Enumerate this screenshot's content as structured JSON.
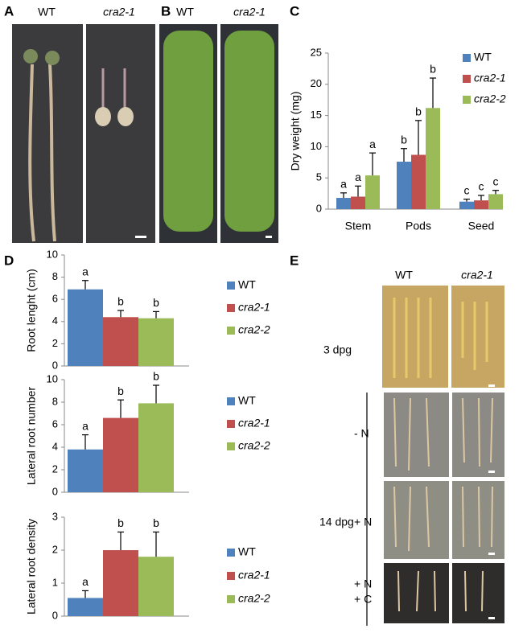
{
  "panel_labels": [
    "A",
    "B",
    "C",
    "D",
    "E"
  ],
  "panel_a": {
    "labels": [
      "WT",
      "cra2-1"
    ]
  },
  "panel_b": {
    "labels": [
      "WT",
      "cra2-1"
    ]
  },
  "panel_e": {
    "columns": [
      "WT",
      "cra2-1"
    ],
    "rows": [
      "3 dpg",
      "14 dpg",
      "- N",
      "+ N",
      "+ N",
      "+ C"
    ]
  },
  "chart_data": [
    {
      "type": "bar",
      "ylabel": "Dry weight (mg)",
      "categories": [
        "Stem",
        "Pods",
        "Seed"
      ],
      "series": [
        {
          "name": "WT",
          "color": "#4f81bd",
          "values": [
            1.8,
            7.6,
            1.2
          ],
          "errors": [
            0.8,
            2.1,
            0.4
          ],
          "letters": [
            "a",
            "b",
            "c"
          ]
        },
        {
          "name": "cra2-1",
          "color": "#c0504d",
          "values": [
            2.0,
            8.7,
            1.4
          ],
          "errors": [
            1.7,
            5.5,
            0.8
          ],
          "letters": [
            "a",
            "b",
            "c"
          ]
        },
        {
          "name": "cra2-2",
          "color": "#9bbb59",
          "values": [
            5.4,
            16.2,
            2.4
          ],
          "errors": [
            3.6,
            4.8,
            0.6
          ],
          "letters": [
            "a",
            "b",
            "c"
          ]
        }
      ],
      "ylim": [
        0,
        25
      ],
      "yticks": [
        0,
        5,
        10,
        15,
        20,
        25
      ],
      "legend": "upper right"
    },
    {
      "type": "bar",
      "ylabel": "Root lenght (cm)",
      "categories": [
        null
      ],
      "series": [
        {
          "name": "WT",
          "color": "#4f81bd",
          "values": [
            6.9
          ],
          "errors": [
            0.8
          ],
          "letters": [
            "a"
          ]
        },
        {
          "name": "cra2-1",
          "color": "#c0504d",
          "values": [
            4.4
          ],
          "errors": [
            0.6
          ],
          "letters": [
            "b"
          ]
        },
        {
          "name": "cra2-2",
          "color": "#9bbb59",
          "values": [
            4.3
          ],
          "errors": [
            0.6
          ],
          "letters": [
            "b"
          ]
        }
      ],
      "ylim": [
        0,
        10
      ],
      "yticks": [
        0,
        2,
        4,
        6,
        8,
        10
      ],
      "legend": "right"
    },
    {
      "type": "bar",
      "ylabel": "Lateral root number",
      "categories": [
        null
      ],
      "series": [
        {
          "name": "WT",
          "color": "#4f81bd",
          "values": [
            3.8
          ],
          "errors": [
            1.3
          ],
          "letters": [
            "a"
          ]
        },
        {
          "name": "cra2-1",
          "color": "#c0504d",
          "values": [
            6.6
          ],
          "errors": [
            1.6
          ],
          "letters": [
            "b"
          ]
        },
        {
          "name": "cra2-2",
          "color": "#9bbb59",
          "values": [
            7.9
          ],
          "errors": [
            1.6
          ],
          "letters": [
            "b"
          ]
        }
      ],
      "ylim": [
        0,
        10
      ],
      "yticks": [
        0,
        2,
        4,
        6,
        8,
        10
      ],
      "legend": "right"
    },
    {
      "type": "bar",
      "ylabel": "Lateral root density",
      "categories": [
        null
      ],
      "series": [
        {
          "name": "WT",
          "color": "#4f81bd",
          "values": [
            0.55
          ],
          "errors": [
            0.22
          ],
          "letters": [
            "a"
          ]
        },
        {
          "name": "cra2-1",
          "color": "#c0504d",
          "values": [
            2.0
          ],
          "errors": [
            0.55
          ],
          "letters": [
            "b"
          ]
        },
        {
          "name": "cra2-2",
          "color": "#9bbb59",
          "values": [
            1.8
          ],
          "errors": [
            0.75
          ],
          "letters": [
            "b"
          ]
        }
      ],
      "ylim": [
        0,
        3
      ],
      "yticks": [
        0,
        1,
        2,
        3
      ],
      "legend": "right"
    }
  ]
}
